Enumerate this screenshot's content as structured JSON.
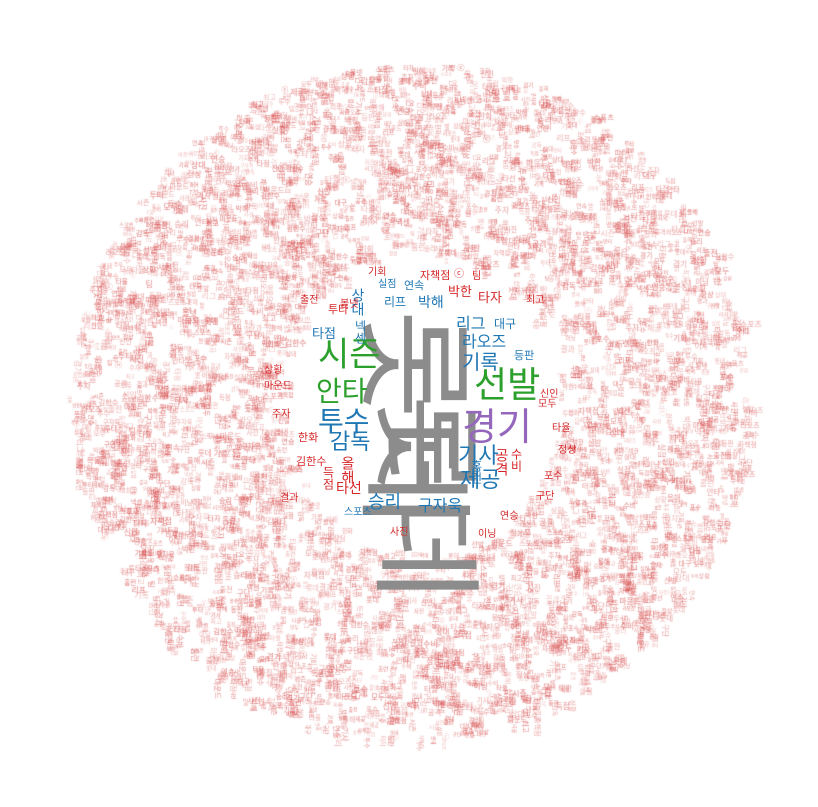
{
  "colors": {
    "background": "#ffffff",
    "filler": "#e06060",
    "grey": "#8c8c8c",
    "green": "#2ca02c",
    "blue": "#1f77b4",
    "purple": "#9467bd",
    "red": "#d62728",
    "orange": "#ff7f0e"
  },
  "words": [
    {
      "text": "롯데",
      "color": "grey"
    },
    {
      "text": "롯데",
      "color": "grey"
    },
    {
      "text": "시즌",
      "color": "green"
    },
    {
      "text": "선발",
      "color": "green"
    },
    {
      "text": "경기",
      "color": "purple"
    },
    {
      "text": "안타",
      "color": "green"
    },
    {
      "text": "투수",
      "color": "blue"
    },
    {
      "text": "감독",
      "color": "blue"
    },
    {
      "text": "기록",
      "color": "blue"
    },
    {
      "text": "기사",
      "color": "blue"
    },
    {
      "text": "제공",
      "color": "blue"
    },
    {
      "text": "승리",
      "color": "blue"
    },
    {
      "text": "구자욱",
      "color": "blue"
    },
    {
      "text": "라오즈",
      "color": "blue"
    },
    {
      "text": "리그",
      "color": "blue"
    },
    {
      "text": "대구",
      "color": "blue"
    },
    {
      "text": "타자",
      "color": "red"
    },
    {
      "text": "박한",
      "color": "red"
    },
    {
      "text": "박해",
      "color": "blue"
    },
    {
      "text": "리프",
      "color": "blue"
    },
    {
      "text": "상대",
      "color": "blue"
    },
    {
      "text": "연속",
      "color": "blue"
    },
    {
      "text": "실점",
      "color": "blue"
    },
    {
      "text": "자책점",
      "color": "red"
    },
    {
      "text": "투타",
      "color": "red"
    },
    {
      "text": "타점",
      "color": "blue"
    },
    {
      "text": "홈런",
      "color": "blue"
    },
    {
      "text": "등판",
      "color": "blue"
    },
    {
      "text": "김한수",
      "color": "red"
    },
    {
      "text": "한화",
      "color": "red"
    },
    {
      "text": "마운드",
      "color": "red"
    },
    {
      "text": "스포츠",
      "color": "blue"
    },
    {
      "text": "넥센",
      "color": "blue"
    },
    {
      "text": "타선",
      "color": "red"
    },
    {
      "text": "공격",
      "color": "red"
    },
    {
      "text": "득점",
      "color": "red"
    },
    {
      "text": "수비",
      "color": "red"
    },
    {
      "text": "올해",
      "color": "red"
    },
    {
      "text": "타율",
      "color": "red"
    },
    {
      "text": "연승",
      "color": "red"
    },
    {
      "text": "정상",
      "color": "red"
    },
    {
      "text": "이닝",
      "color": "red"
    },
    {
      "text": "사진",
      "color": "red"
    },
    {
      "text": "신인",
      "color": "red"
    },
    {
      "text": "상황",
      "color": "red"
    },
    {
      "text": "최고",
      "color": "red"
    },
    {
      "text": "결과",
      "color": "red"
    },
    {
      "text": "구단",
      "color": "red"
    },
    {
      "text": "주자",
      "color": "red"
    },
    {
      "text": "출전",
      "color": "red"
    },
    {
      "text": "기회",
      "color": "red"
    },
    {
      "text": "모두",
      "color": "red"
    },
    {
      "text": "볼넷",
      "color": "red"
    },
    {
      "text": "포수",
      "color": "red"
    },
    {
      "text": "팀",
      "color": "red"
    },
    {
      "text": "ⓒ",
      "color": "red"
    }
  ]
}
